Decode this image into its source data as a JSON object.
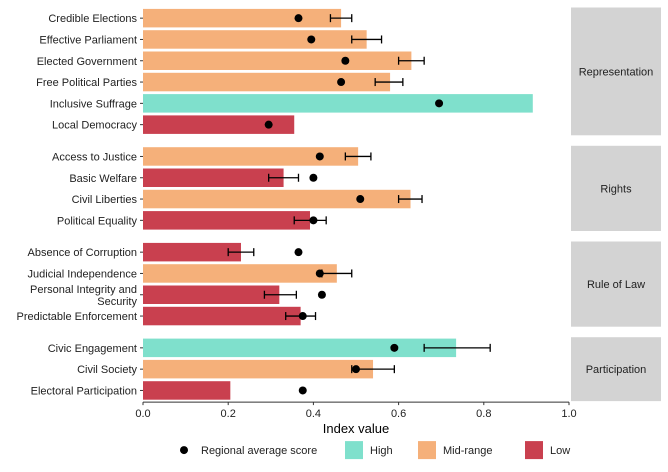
{
  "chart_data": {
    "type": "bar",
    "orientation": "horizontal",
    "xlabel": "Index value",
    "xlim": [
      0,
      1
    ],
    "x_ticks": [
      "0.0",
      "0.2",
      "0.4",
      "0.6",
      "0.8",
      "1.0"
    ],
    "x_tick_values": [
      0,
      0.2,
      0.4,
      0.6,
      0.8,
      1.0
    ],
    "grid": false,
    "legend_position": "bottom",
    "colors": {
      "High": "#7fe0cc",
      "Mid-range": "#f5b07a",
      "Low": "#c9404f",
      "panel_strip": "#d3d3d3",
      "point": "#000000"
    },
    "legend": [
      {
        "key": "avg",
        "label": "Regional average score",
        "shape": "point"
      },
      {
        "key": "High",
        "label": "High",
        "shape": "box"
      },
      {
        "key": "Mid-range",
        "label": "Mid-range",
        "shape": "box"
      },
      {
        "key": "Low",
        "label": "Low",
        "shape": "box"
      }
    ],
    "panels": [
      {
        "label": "Representation",
        "items": [
          {
            "label": "Credible Elections",
            "value": 0.465,
            "category": "Mid-range",
            "avg": 0.365,
            "err": [
              0.44,
              0.49
            ]
          },
          {
            "label": "Effective Parliament",
            "value": 0.525,
            "category": "Mid-range",
            "avg": 0.395,
            "err": [
              0.49,
              0.56
            ]
          },
          {
            "label": "Elected Government",
            "value": 0.63,
            "category": "Mid-range",
            "avg": 0.475,
            "err": [
              0.6,
              0.66
            ]
          },
          {
            "label": "Free Political Parties",
            "value": 0.58,
            "category": "Mid-range",
            "avg": 0.465,
            "err": [
              0.545,
              0.61
            ]
          },
          {
            "label": "Inclusive Suffrage",
            "value": 0.915,
            "category": "High",
            "avg": 0.695,
            "err": null
          },
          {
            "label": "Local Democracy",
            "value": 0.355,
            "category": "Low",
            "avg": 0.295,
            "err": null
          }
        ]
      },
      {
        "label": "Rights",
        "items": [
          {
            "label": "Access to Justice",
            "value": 0.505,
            "category": "Mid-range",
            "avg": 0.415,
            "err": [
              0.475,
              0.535
            ]
          },
          {
            "label": "Basic Welfare",
            "value": 0.33,
            "category": "Low",
            "avg": 0.4,
            "err": [
              0.295,
              0.365
            ]
          },
          {
            "label": "Civil Liberties",
            "value": 0.628,
            "category": "Mid-range",
            "avg": 0.51,
            "err": [
              0.6,
              0.655
            ]
          },
          {
            "label": "Political Equality",
            "value": 0.392,
            "category": "Low",
            "avg": 0.4,
            "err": [
              0.355,
              0.43
            ]
          }
        ]
      },
      {
        "label": "Rule of Law",
        "items": [
          {
            "label": "Absence of Corruption",
            "value": 0.23,
            "category": "Low",
            "avg": 0.365,
            "err": [
              0.2,
              0.26
            ]
          },
          {
            "label": "Judicial Independence",
            "value": 0.455,
            "category": "Mid-range",
            "avg": 0.415,
            "err": [
              0.42,
              0.49
            ]
          },
          {
            "label": "Personal Integrity and\nSecurity",
            "value": 0.32,
            "category": "Low",
            "avg": 0.42,
            "err": [
              0.285,
              0.36
            ]
          },
          {
            "label": "Predictable Enforcement",
            "value": 0.37,
            "category": "Low",
            "avg": 0.375,
            "err": [
              0.335,
              0.405
            ]
          }
        ]
      },
      {
        "label": "Participation",
        "items": [
          {
            "label": "Civic Engagement",
            "value": 0.735,
            "category": "High",
            "avg": 0.59,
            "err": [
              0.66,
              0.815
            ]
          },
          {
            "label": "Civil Society",
            "value": 0.54,
            "category": "Mid-range",
            "avg": 0.5,
            "err": [
              0.49,
              0.59
            ]
          },
          {
            "label": "Electoral Participation",
            "value": 0.205,
            "category": "Low",
            "avg": 0.375,
            "err": null
          }
        ]
      }
    ]
  }
}
